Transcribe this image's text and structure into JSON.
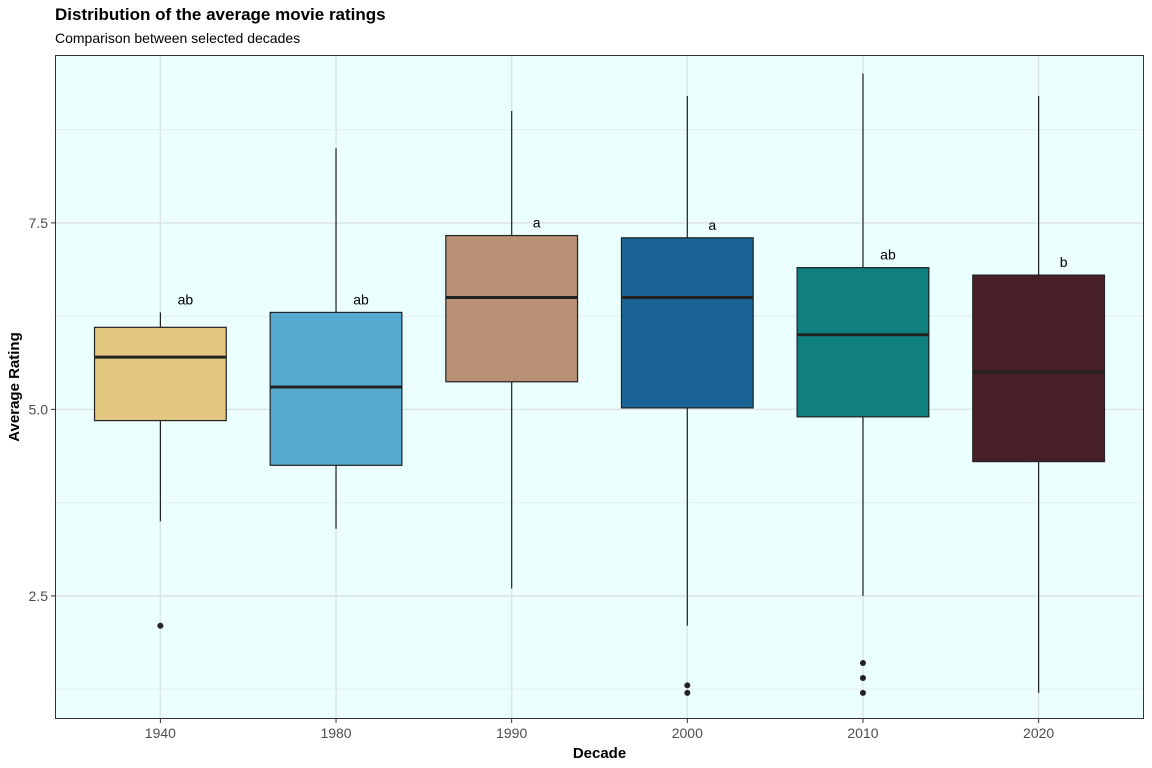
{
  "chart_data": {
    "type": "boxplot",
    "title": "Distribution of the average movie ratings",
    "subtitle": "Comparison between selected decades",
    "xlabel": "Decade",
    "ylabel": "Average Rating",
    "ylim": [
      0.85,
      9.75
    ],
    "yticks": [
      2.5,
      5.0,
      7.5
    ],
    "ytick_labels": [
      "2.5",
      "5.0",
      "7.5"
    ],
    "categories": [
      "1940",
      "1980",
      "1990",
      "2000",
      "2010",
      "2020"
    ],
    "grid": true,
    "background": "#ebffff",
    "boxes": [
      {
        "category": "1940",
        "whisker_low": 3.5,
        "q1": 4.85,
        "median": 5.7,
        "q3": 6.1,
        "whisker_high": 6.3,
        "outliers": [
          2.1
        ],
        "letter": "ab",
        "color": "#e3c882"
      },
      {
        "category": "1980",
        "whisker_low": 3.4,
        "q1": 4.25,
        "median": 5.3,
        "q3": 6.3,
        "whisker_high": 8.5,
        "outliers": [],
        "letter": "ab",
        "color": "#56aad0"
      },
      {
        "category": "1990",
        "whisker_low": 2.6,
        "q1": 5.37,
        "median": 6.5,
        "q3": 7.33,
        "whisker_high": 9.0,
        "outliers": [],
        "letter": "a",
        "color": "#b89174"
      },
      {
        "category": "2000",
        "whisker_low": 2.1,
        "q1": 5.02,
        "median": 6.5,
        "q3": 7.3,
        "whisker_high": 9.2,
        "outliers": [
          1.3,
          1.2
        ],
        "letter": "a",
        "color": "#1a6496"
      },
      {
        "category": "2010",
        "whisker_low": 2.5,
        "q1": 4.9,
        "median": 6.0,
        "q3": 6.9,
        "whisker_high": 9.5,
        "outliers": [
          1.6,
          1.4,
          1.2
        ],
        "letter": "ab",
        "color": "#0f807d"
      },
      {
        "category": "2020",
        "whisker_low": 1.2,
        "q1": 4.3,
        "median": 5.5,
        "q3": 6.8,
        "whisker_high": 9.2,
        "outliers": [],
        "letter": "b",
        "color": "#472027"
      }
    ]
  }
}
